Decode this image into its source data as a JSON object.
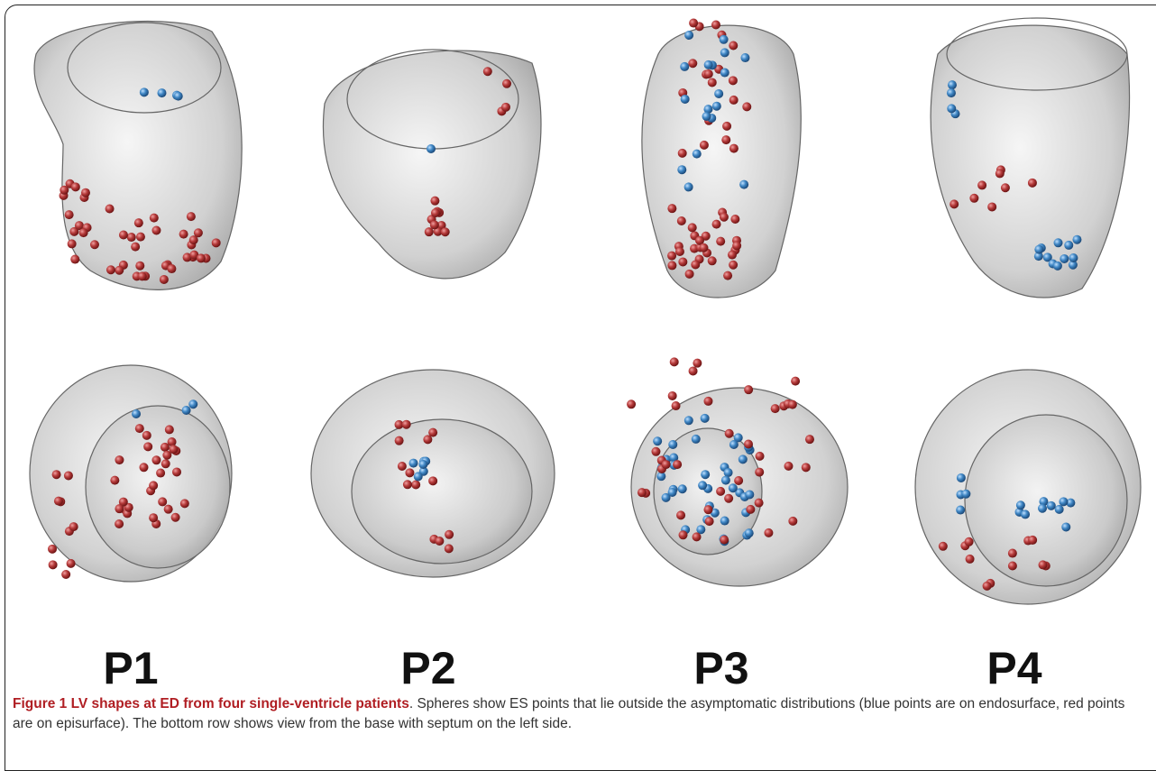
{
  "figure": {
    "panel_labels": [
      "P1",
      "P2",
      "P3",
      "P4"
    ],
    "caption": {
      "label": "Figure 1 LV shapes at ED from four single-ventricle patients",
      "text": ". Spheres show ES points that lie outside the asymptomatic distributions (blue points are on endosurface, red points are on episurface). The bottom row shows view from the base with septum on the left side."
    }
  }
}
